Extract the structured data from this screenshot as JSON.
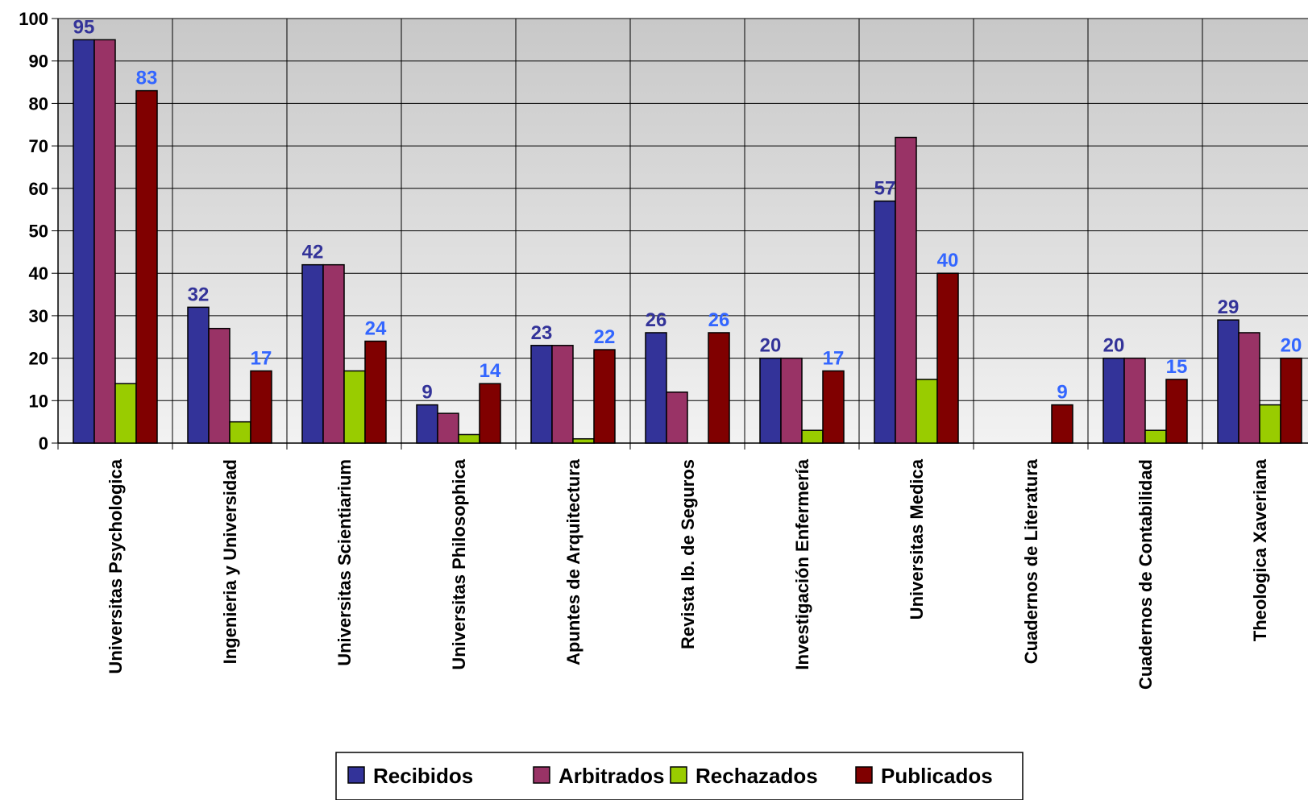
{
  "chart_data": {
    "type": "bar",
    "title": "",
    "xlabel": "",
    "ylabel": "",
    "ylim": [
      0,
      100
    ],
    "yticks": [
      "0",
      "10",
      "20",
      "30",
      "40",
      "50",
      "60",
      "70",
      "80",
      "90",
      "100"
    ],
    "grid": true,
    "legend_position": "bottom",
    "categories": [
      "Universitas Psychologica",
      "Ingenieria y Universidad",
      "Universitas Scientiarium",
      "Universitas Philosophica",
      "Apuntes de Arquitectura",
      "Revista Ib. de Seguros",
      "Investigación Enfermería",
      "Universitas Medica",
      "Cuadernos de Literatura",
      "Cuadernos de Contabilidad",
      "Theologica Xaveriana"
    ],
    "series": [
      {
        "name": "Recibidos",
        "color": "#333399",
        "values": [
          95,
          32,
          42,
          9,
          23,
          26,
          20,
          57,
          0,
          20,
          29
        ]
      },
      {
        "name": "Arbitrados",
        "color": "#993366",
        "values": [
          95,
          27,
          42,
          7,
          23,
          12,
          20,
          72,
          0,
          20,
          26
        ]
      },
      {
        "name": "Rechazados",
        "color": "#99CC00",
        "values": [
          14,
          5,
          17,
          2,
          1,
          0,
          3,
          15,
          0,
          3,
          9
        ]
      },
      {
        "name": "Publicados",
        "color": "#800000",
        "values": [
          83,
          17,
          24,
          14,
          22,
          26,
          17,
          40,
          9,
          15,
          20
        ]
      }
    ],
    "data_labels": {
      "Recibidos": {
        "color": "#333399",
        "shown": [
          true,
          true,
          true,
          true,
          true,
          true,
          true,
          true,
          false,
          true,
          true
        ]
      },
      "Publicados": {
        "color": "#3366FF",
        "shown": [
          true,
          true,
          true,
          true,
          true,
          true,
          true,
          true,
          true,
          true,
          true
        ]
      }
    }
  }
}
